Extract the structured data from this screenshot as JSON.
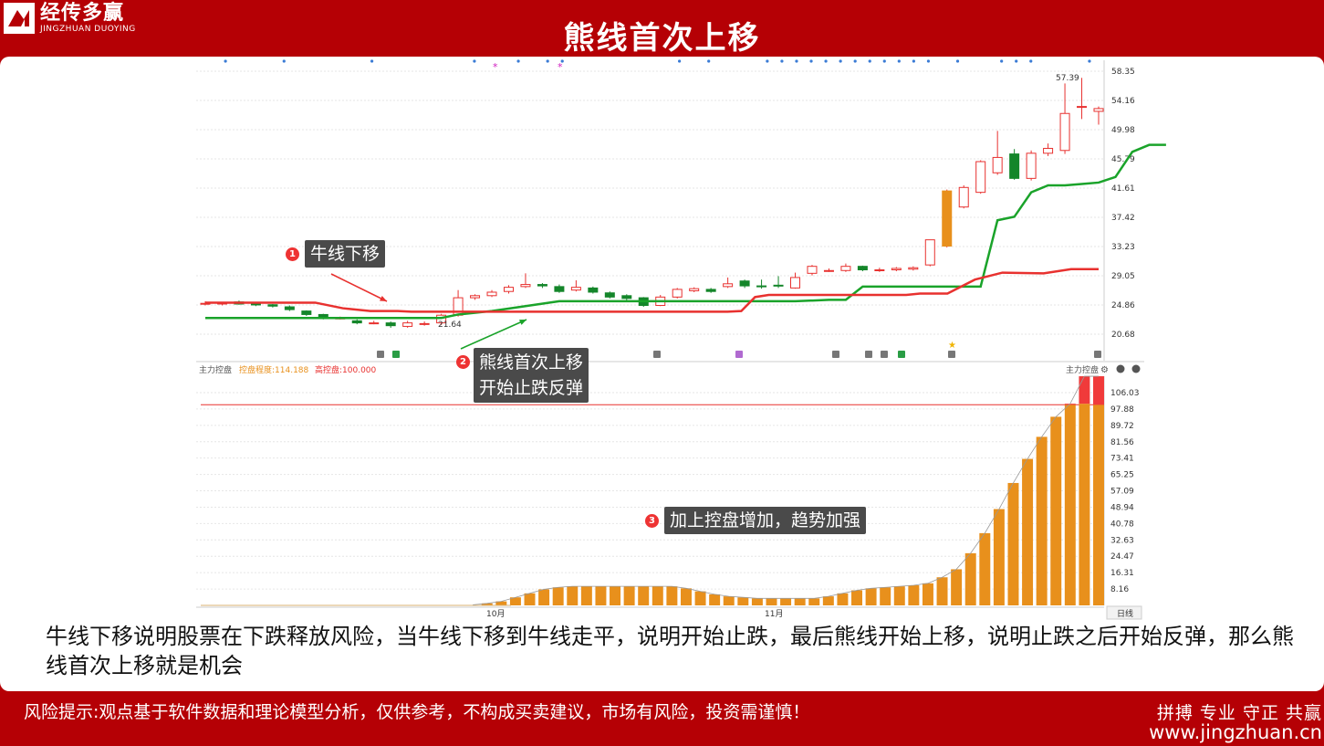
{
  "header": {
    "logo_cn": "经传多赢",
    "logo_en": "JINGZHUAN DUOYING",
    "title": "熊线首次上移"
  },
  "colors": {
    "brand_red": "#b50005",
    "bull_line": "#e8312f",
    "bear_line": "#1aa32a",
    "bar_fill": "#e8901c",
    "bar_top": "#f03a3a"
  },
  "callouts": [
    {
      "num": "1",
      "text": "牛线下移"
    },
    {
      "num": "2",
      "line1": "熊线首次上移",
      "line2": "开始止跌反弹"
    },
    {
      "num": "3",
      "text": "加上控盘增加，趋势加强"
    }
  ],
  "indicator": {
    "name": "主力控盘",
    "degree": "控盘程度:114.188",
    "high": "高控盘:100.000",
    "right_name": "主力控盘",
    "period": "日线"
  },
  "chart_data": [
    {
      "type": "candlestick",
      "x_labels": [
        "10月",
        "11月"
      ],
      "y_ticks": [
        "58.35",
        "54.16",
        "49.98",
        "45.79",
        "41.61",
        "37.42",
        "33.23",
        "29.05",
        "24.86",
        "20.68"
      ],
      "annotations": [
        "57.39",
        "21.64"
      ],
      "candles": [
        [
          25.0,
          25.1,
          24.8,
          25.4
        ],
        [
          25.0,
          25.2,
          24.8,
          25.3
        ],
        [
          25.3,
          25.0,
          24.9,
          25.5
        ],
        [
          25.0,
          24.9,
          24.7,
          25.2
        ],
        [
          24.9,
          24.7,
          24.5,
          25.0
        ],
        [
          24.6,
          24.2,
          24.0,
          24.8
        ],
        [
          24.0,
          23.5,
          23.3,
          24.1
        ],
        [
          23.5,
          23.0,
          22.8,
          23.6
        ],
        [
          23.0,
          23.0,
          22.8,
          23.2
        ],
        [
          22.6,
          22.3,
          22.1,
          22.8
        ],
        [
          22.3,
          22.3,
          22.1,
          22.6
        ],
        [
          22.3,
          21.9,
          21.6,
          22.5
        ],
        [
          21.8,
          22.3,
          21.6,
          22.6
        ],
        [
          22.2,
          22.2,
          21.9,
          22.5
        ],
        [
          22.3,
          23.4,
          22.0,
          23.6
        ],
        [
          23.4,
          25.9,
          23.2,
          27.0
        ],
        [
          25.9,
          26.2,
          25.6,
          26.4
        ],
        [
          26.2,
          26.7,
          26.0,
          27.0
        ],
        [
          26.8,
          27.4,
          26.5,
          27.7
        ],
        [
          27.5,
          27.8,
          27.3,
          29.4
        ],
        [
          27.8,
          27.6,
          27.3,
          28.0
        ],
        [
          27.5,
          26.8,
          26.6,
          27.8
        ],
        [
          27.0,
          27.4,
          26.8,
          28.4
        ],
        [
          27.3,
          26.7,
          26.5,
          27.5
        ],
        [
          26.6,
          26.0,
          25.8,
          26.8
        ],
        [
          26.2,
          25.8,
          25.5,
          26.4
        ],
        [
          25.9,
          24.8,
          24.6,
          26.0
        ],
        [
          24.8,
          26.0,
          24.7,
          26.3
        ],
        [
          26.0,
          27.1,
          25.8,
          27.3
        ],
        [
          26.9,
          27.2,
          26.7,
          27.4
        ],
        [
          27.1,
          26.8,
          26.6,
          27.3
        ],
        [
          27.5,
          27.9,
          27.3,
          28.8
        ],
        [
          28.3,
          27.6,
          27.3,
          28.5
        ],
        [
          27.6,
          27.5,
          27.2,
          28.5
        ],
        [
          27.7,
          27.6,
          27.3,
          29.0
        ],
        [
          27.3,
          28.8,
          27.2,
          29.5
        ],
        [
          29.4,
          30.4,
          29.1,
          30.6
        ],
        [
          29.8,
          29.8,
          29.6,
          30.1
        ],
        [
          29.8,
          30.4,
          29.6,
          30.8
        ],
        [
          30.4,
          29.9,
          29.7,
          30.5
        ],
        [
          29.8,
          29.9,
          29.6,
          30.2
        ],
        [
          29.9,
          30.1,
          29.7,
          30.3
        ],
        [
          30.0,
          30.2,
          29.8,
          30.4
        ],
        [
          30.6,
          34.2,
          30.4,
          34.2
        ],
        [
          33.3,
          41.2,
          33.1,
          41.4
        ],
        [
          38.9,
          41.7,
          38.7,
          42.0
        ],
        [
          41.0,
          45.4,
          40.8,
          45.6
        ],
        [
          43.8,
          46.0,
          43.5,
          49.8
        ],
        [
          46.5,
          43.0,
          42.8,
          47.2
        ],
        [
          43.0,
          46.6,
          42.7,
          47.0
        ],
        [
          46.6,
          47.3,
          46.2,
          48.0
        ],
        [
          47.0,
          52.3,
          46.5,
          56.6
        ],
        [
          53.3,
          53.3,
          51.5,
          57.4
        ],
        [
          52.6,
          53.0,
          50.7,
          53.3
        ]
      ],
      "bear_line": [
        [
          0,
          23.0
        ],
        [
          10,
          23.0
        ],
        [
          14,
          23.0
        ],
        [
          15,
          23.5
        ],
        [
          17,
          24.0
        ],
        [
          21,
          25.4
        ],
        [
          35,
          25.4
        ],
        [
          37,
          25.6
        ],
        [
          38,
          25.6
        ],
        [
          39,
          27.5
        ],
        [
          45,
          27.5
        ],
        [
          46,
          27.5
        ],
        [
          47,
          37.0
        ],
        [
          48,
          37.5
        ],
        [
          49,
          41.0
        ],
        [
          50,
          42.0
        ],
        [
          51,
          42.0
        ],
        [
          52,
          42.2
        ],
        [
          53,
          42.4
        ],
        [
          54,
          43.2
        ],
        [
          55,
          46.8
        ],
        [
          56,
          47.8
        ],
        [
          57,
          47.8
        ]
      ],
      "bull_line": [
        [
          0,
          25.2
        ],
        [
          8,
          25.2
        ],
        [
          10,
          24.4
        ],
        [
          12,
          24.0
        ],
        [
          14,
          24.0
        ],
        [
          15,
          23.9
        ],
        [
          38,
          23.9
        ],
        [
          39,
          24.0
        ],
        [
          40,
          26.0
        ],
        [
          41,
          26.3
        ],
        [
          45,
          26.3
        ],
        [
          49,
          26.3
        ],
        [
          51,
          26.3
        ],
        [
          52,
          26.5
        ],
        [
          54,
          26.5
        ],
        [
          56,
          28.5
        ],
        [
          58,
          29.5
        ],
        [
          61,
          29.4
        ],
        [
          63,
          30.0
        ],
        [
          65,
          30.0
        ]
      ]
    },
    {
      "type": "bar",
      "title": "主力控盘",
      "y_ticks": [
        "106.03",
        "97.88",
        "89.72",
        "81.56",
        "73.41",
        "65.25",
        "57.09",
        "48.94",
        "40.78",
        "32.63",
        "24.47",
        "16.31",
        "8.16"
      ],
      "reference_line": 100.0,
      "values": [
        0,
        0,
        0,
        0,
        0,
        0,
        0,
        0,
        0,
        0,
        0,
        0,
        0,
        0,
        0,
        0,
        0,
        0,
        0,
        0,
        1,
        2,
        4,
        6,
        8,
        9,
        9.5,
        9.5,
        9.5,
        9.5,
        9.5,
        9.5,
        9.5,
        9.5,
        8.5,
        7,
        5.5,
        4.5,
        4.0,
        3.5,
        3.5,
        3.5,
        3.5,
        3.5,
        4.5,
        6,
        7.5,
        8.5,
        9.0,
        9.5,
        10,
        11,
        14,
        18,
        26,
        36,
        48,
        61,
        73,
        84,
        94,
        100.5,
        114.2,
        114.2
      ],
      "overflow": [
        0,
        0,
        0,
        0,
        0,
        0,
        0,
        0,
        0,
        0,
        0,
        0,
        0,
        0,
        0,
        0,
        0,
        0,
        0,
        0,
        0,
        0,
        0,
        0,
        0,
        0,
        0,
        0,
        0,
        0,
        0,
        0,
        0,
        0,
        0,
        0,
        0,
        0,
        0,
        0,
        0,
        0,
        0,
        0,
        0,
        0,
        0,
        0,
        0,
        0,
        0,
        0,
        0,
        0,
        0,
        0,
        0,
        0,
        0,
        0,
        0,
        0.5,
        13.7,
        14.2
      ]
    }
  ],
  "description": "牛线下移说明股票在下跌释放风险，当牛线下移到牛线走平，说明开始止跌，最后熊线开始上移，说明止跌之后开始反弹，那么熊线首次上移就是机会",
  "footer": {
    "risk_label": "风险提示:",
    "risk_text": "观点基于软件数据和理论模型分析，仅供参考，不构成买卖建议，市场有风险，投资需谨慎！",
    "slogan": "拼搏 专业 守正 共赢",
    "website": "www.jingzhuan.cn"
  }
}
